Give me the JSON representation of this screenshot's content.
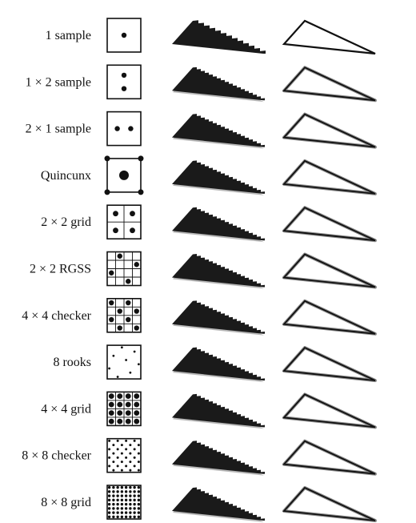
{
  "rows": [
    {
      "label": "1 sample",
      "pattern": "1-sample"
    },
    {
      "label": "1 × 2  sample",
      "pattern": "1x2-sample"
    },
    {
      "label": "2 × 1 sample",
      "pattern": "2x1-sample"
    },
    {
      "label": "Quincunx",
      "pattern": "quincunx"
    },
    {
      "label": "2 × 2 grid",
      "pattern": "2x2-grid"
    },
    {
      "label": "2 × 2 RGSS",
      "pattern": "2x2-rgss"
    },
    {
      "label": "4 × 4 checker",
      "pattern": "4x4-checker"
    },
    {
      "label": "8 rooks",
      "pattern": "8-rooks"
    },
    {
      "label": "4 × 4 grid",
      "pattern": "4x4-grid"
    },
    {
      "label": "8 × 8 checker",
      "pattern": "8x8-checker"
    },
    {
      "label": "8 × 8 grid",
      "pattern": "8x8-grid"
    }
  ],
  "colors": {
    "ink": "#111111",
    "fill_dark": "#1a1a1a",
    "antialias_gray": "#8a8a8a",
    "light_gray": "#b8b8b8",
    "background": "#ffffff"
  }
}
